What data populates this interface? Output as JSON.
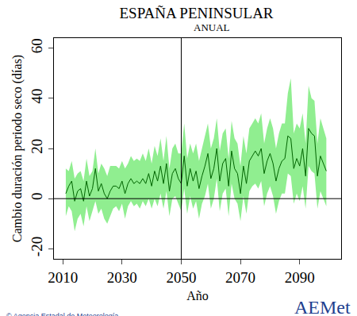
{
  "chart_data": {
    "type": "line",
    "title": "ESPAÑA PENINSULAR",
    "subtitle": "ANUAL",
    "xlabel": "Año",
    "ylabel": "Cambio duración periodo seco (días)",
    "source": "© Agencia Estadal de Meteorología",
    "logo": "AEMet",
    "x": [
      2011,
      2012,
      2013,
      2014,
      2015,
      2016,
      2017,
      2018,
      2019,
      2020,
      2021,
      2022,
      2023,
      2024,
      2025,
      2026,
      2027,
      2028,
      2029,
      2030,
      2031,
      2032,
      2033,
      2034,
      2035,
      2036,
      2037,
      2038,
      2039,
      2040,
      2041,
      2042,
      2043,
      2044,
      2045,
      2046,
      2047,
      2048,
      2049,
      2050,
      2051,
      2052,
      2053,
      2054,
      2055,
      2056,
      2057,
      2058,
      2059,
      2060,
      2061,
      2062,
      2063,
      2064,
      2065,
      2066,
      2067,
      2068,
      2069,
      2070,
      2071,
      2072,
      2073,
      2074,
      2075,
      2076,
      2077,
      2078,
      2079,
      2080,
      2081,
      2082,
      2083,
      2084,
      2085,
      2086,
      2087,
      2088,
      2089,
      2090,
      2091,
      2092,
      2093,
      2094,
      2095,
      2096,
      2097,
      2098,
      2099
    ],
    "series": [
      {
        "color": "#006400",
        "band_color": "#90ee90",
        "values": [
          2,
          5,
          7,
          -1,
          3,
          4,
          -1,
          7,
          1,
          4,
          12,
          3,
          6,
          2,
          0,
          3,
          5,
          5,
          4,
          7,
          2,
          6,
          8,
          6,
          7,
          6,
          8,
          6,
          10,
          5,
          11,
          7,
          13,
          6,
          14,
          3,
          10,
          12,
          8,
          6,
          17,
          5,
          12,
          7,
          11,
          4,
          9,
          13,
          18,
          8,
          12,
          20,
          7,
          14,
          16,
          5,
          19,
          12,
          10,
          2,
          13,
          6,
          15,
          17,
          19,
          17,
          20,
          10,
          15,
          18,
          14,
          7,
          12,
          15,
          16,
          25,
          24,
          12,
          16,
          13,
          20,
          9,
          28,
          26,
          25,
          9,
          17,
          14,
          11
        ],
        "lower": [
          -7,
          -3,
          -5,
          -13,
          -8,
          -6,
          -11,
          -3,
          -9,
          -5,
          -1,
          -6,
          -4,
          -8,
          -10,
          -7,
          -4,
          -3,
          -5,
          -2,
          -8,
          -3,
          -1,
          -3,
          -2,
          -4,
          -1,
          -3,
          0,
          -4,
          0,
          -3,
          2,
          -4,
          3,
          -7,
          0,
          1,
          -2,
          -5,
          4,
          -6,
          1,
          -4,
          -1,
          -8,
          -2,
          1,
          6,
          -4,
          0,
          8,
          -5,
          2,
          4,
          -7,
          6,
          0,
          -2,
          -9,
          1,
          -6,
          3,
          5,
          6,
          4,
          7,
          -3,
          2,
          5,
          1,
          -6,
          -1,
          2,
          2,
          10,
          9,
          -2,
          2,
          -1,
          5,
          -4,
          13,
          11,
          10,
          -4,
          3,
          0,
          -3
        ],
        "upper": [
          12,
          11,
          15,
          8,
          10,
          11,
          7,
          16,
          9,
          11,
          20,
          10,
          14,
          12,
          9,
          13,
          13,
          13,
          12,
          15,
          12,
          14,
          17,
          15,
          16,
          15,
          18,
          15,
          20,
          14,
          21,
          17,
          24,
          15,
          25,
          12,
          20,
          22,
          18,
          18,
          30,
          16,
          22,
          18,
          22,
          15,
          20,
          25,
          30,
          20,
          24,
          32,
          19,
          26,
          28,
          16,
          31,
          24,
          22,
          13,
          25,
          18,
          28,
          30,
          32,
          30,
          34,
          22,
          28,
          32,
          28,
          20,
          26,
          30,
          30,
          42,
          48,
          26,
          30,
          28,
          34,
          22,
          45,
          40,
          39,
          22,
          32,
          28,
          24
        ]
      }
    ],
    "vline": 2050,
    "hline": 0,
    "xlim": [
      2007,
      2104
    ],
    "ylim": [
      -24,
      64
    ],
    "xticks": [
      2010,
      2030,
      2050,
      2070,
      2090
    ],
    "yticks": [
      -20,
      0,
      20,
      40,
      60
    ],
    "grid": false
  }
}
